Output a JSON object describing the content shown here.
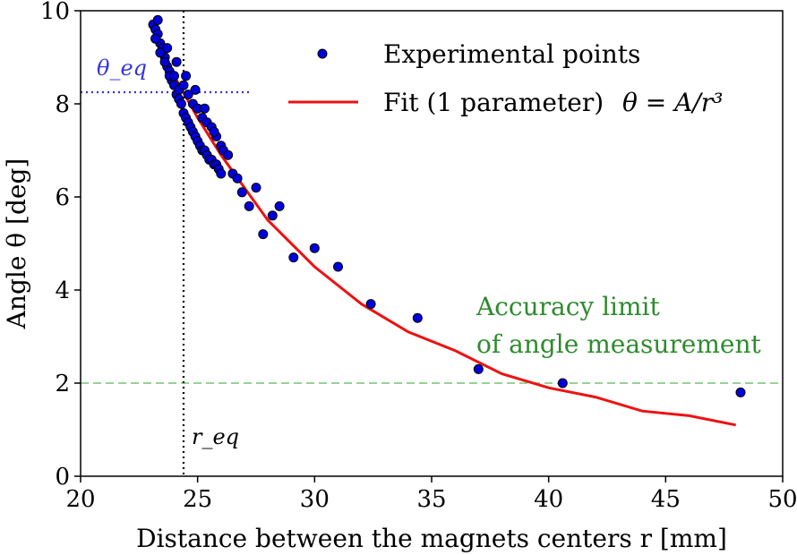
{
  "chart_data": {
    "type": "scatter",
    "xlabel": "Distance between the magnets centers r [mm]",
    "ylabel": "Angle θ [deg]",
    "xlim": [
      20,
      50
    ],
    "ylim": [
      0,
      10
    ],
    "xticks": [
      "20",
      "25",
      "30",
      "35",
      "40",
      "45",
      "50"
    ],
    "yticks": [
      "0",
      "2",
      "4",
      "6",
      "8",
      "10"
    ],
    "grid": false,
    "legend_position": "top-right",
    "series": [
      {
        "name": "Experimental points",
        "kind": "scatter",
        "color": "#0000dd",
        "x": [
          23.1,
          23.2,
          23.3,
          23.4,
          23.5,
          23.6,
          23.7,
          23.8,
          23.9,
          24.0,
          24.1,
          24.2,
          24.3,
          24.4,
          24.5,
          24.6,
          24.7,
          24.8,
          24.9,
          25.0,
          25.1,
          25.2,
          25.3,
          25.4,
          25.5,
          25.6,
          25.7,
          25.8,
          25.9,
          26.0,
          23.2,
          23.4,
          23.6,
          23.8,
          24.0,
          24.2,
          24.4,
          24.6,
          24.8,
          25.0,
          25.2,
          25.4,
          25.6,
          25.8,
          26.0,
          23.3,
          23.7,
          24.1,
          24.5,
          24.9,
          25.3,
          25.7,
          26.1,
          26.3,
          26.5,
          26.7,
          26.9,
          27.2,
          27.5,
          27.8,
          28.2,
          28.5,
          29.1,
          30.0,
          31.0,
          32.4,
          34.4,
          37.0,
          40.6,
          48.2
        ],
        "y": [
          9.7,
          9.6,
          9.5,
          9.3,
          9.2,
          9.0,
          8.8,
          8.7,
          8.5,
          8.4,
          8.2,
          8.1,
          8.0,
          7.8,
          7.7,
          7.6,
          7.5,
          7.4,
          7.3,
          7.2,
          7.1,
          7.0,
          7.0,
          6.9,
          6.8,
          6.8,
          6.7,
          6.7,
          6.6,
          6.5,
          9.4,
          9.1,
          8.9,
          8.6,
          8.6,
          8.3,
          8.4,
          8.2,
          8.0,
          7.9,
          7.7,
          7.6,
          7.5,
          7.3,
          7.1,
          9.8,
          9.2,
          8.9,
          8.6,
          8.3,
          7.9,
          7.4,
          7.0,
          6.9,
          6.5,
          6.4,
          6.1,
          5.8,
          6.2,
          5.2,
          5.6,
          5.8,
          4.7,
          4.9,
          4.5,
          3.7,
          3.4,
          2.3,
          2.0,
          1.8
        ]
      },
      {
        "name": "Fit (1 parameter)",
        "kind": "line",
        "color": "#ee1111",
        "formula": "θ = A/r³",
        "x": [
          23.0,
          24.0,
          25.0,
          26.0,
          27.0,
          28.0,
          29.0,
          30.0,
          32.0,
          34.0,
          36.0,
          38.0,
          40.0,
          42.0,
          44.0,
          46.0,
          48.0
        ],
        "y": [
          9.8,
          8.6,
          7.7,
          6.9,
          6.2,
          5.5,
          5.0,
          4.5,
          3.7,
          3.1,
          2.7,
          2.2,
          1.9,
          1.7,
          1.4,
          1.3,
          1.1
        ]
      }
    ],
    "reference_lines": [
      {
        "orientation": "horizontal",
        "value": 2.0,
        "style": "dashed",
        "color": "#88cc88"
      },
      {
        "orientation": "horizontal",
        "value": 8.25,
        "style": "dotted",
        "color": "#3333dd",
        "x_range": [
          20,
          27.2
        ]
      },
      {
        "orientation": "vertical",
        "value": 24.4,
        "style": "dotted",
        "color": "#000000"
      }
    ],
    "annotations": {
      "theta_eq": "θ_eq",
      "r_eq": "r_eq",
      "accuracy_line1": "Accuracy limit",
      "accuracy_line2": "of angle measurement"
    }
  }
}
